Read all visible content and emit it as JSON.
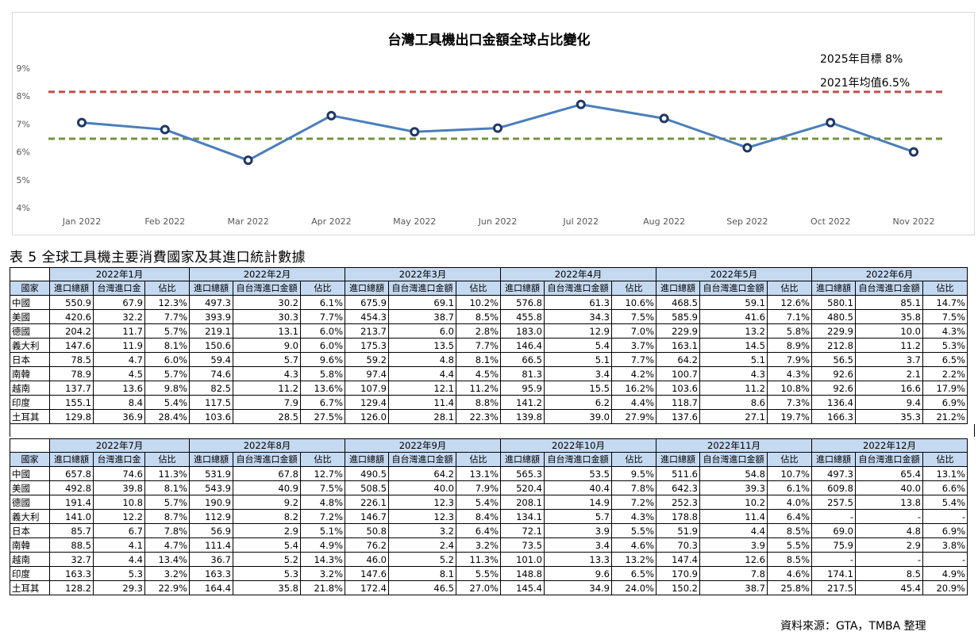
{
  "chart_data": {
    "type": "line",
    "title": "台灣工具機出口金額全球占比變化",
    "categories": [
      "Jan 2022",
      "Feb 2022",
      "Mar 2022",
      "Apr 2022",
      "May 2022",
      "Jun 2022",
      "Jul 2022",
      "Aug 2022",
      "Sep 2022",
      "Oct 2022",
      "Nov 2022"
    ],
    "series": [
      {
        "values": [
          7.05,
          6.8,
          5.7,
          7.3,
          6.72,
          6.85,
          7.7,
          7.2,
          6.15,
          7.05,
          6.0
        ],
        "color": "#4a7ebb"
      }
    ],
    "reference_lines": [
      {
        "label": "2025年目標 8%",
        "value": 8.15,
        "color": "#c0504d"
      },
      {
        "label": "2021年均值6.5%",
        "value": 6.47,
        "color": "#77933c"
      }
    ],
    "y_ticks": [
      "4%",
      "5%",
      "6%",
      "7%",
      "8%",
      "9%"
    ],
    "ylim": [
      4,
      9
    ],
    "grid": false
  },
  "table": {
    "caption": "表 5  全球工具機主要消費國家及其進口統計數據",
    "country_header": "國家",
    "sub_headers": [
      "進口總額",
      "台灣進口金",
      "佔比"
    ],
    "sub_headers_alt": [
      "進口總額",
      "自台灣進口金額",
      "佔比"
    ],
    "countries": [
      "中國",
      "美國",
      "德國",
      "義大利",
      "日本",
      "南韓",
      "越南",
      "印度",
      "土耳其"
    ],
    "top_months": [
      {
        "label": "2022年1月",
        "rows": [
          [
            "550.9",
            "67.9",
            "12.3%"
          ],
          [
            "420.6",
            "32.2",
            "7.7%"
          ],
          [
            "204.2",
            "11.7",
            "5.7%"
          ],
          [
            "147.6",
            "11.9",
            "8.1%"
          ],
          [
            "78.5",
            "4.7",
            "6.0%"
          ],
          [
            "78.9",
            "4.5",
            "5.7%"
          ],
          [
            "137.7",
            "13.6",
            "9.8%"
          ],
          [
            "155.1",
            "8.4",
            "5.4%"
          ],
          [
            "129.8",
            "36.9",
            "28.4%"
          ]
        ]
      },
      {
        "label": "2022年2月",
        "rows": [
          [
            "497.3",
            "30.2",
            "6.1%"
          ],
          [
            "393.9",
            "30.3",
            "7.7%"
          ],
          [
            "219.1",
            "13.1",
            "6.0%"
          ],
          [
            "150.6",
            "9.0",
            "6.0%"
          ],
          [
            "59.4",
            "5.7",
            "9.6%"
          ],
          [
            "74.6",
            "4.3",
            "5.8%"
          ],
          [
            "82.5",
            "11.2",
            "13.6%"
          ],
          [
            "117.5",
            "7.9",
            "6.7%"
          ],
          [
            "103.6",
            "28.5",
            "27.5%"
          ]
        ]
      },
      {
        "label": "2022年3月",
        "rows": [
          [
            "675.9",
            "69.1",
            "10.2%"
          ],
          [
            "454.3",
            "38.7",
            "8.5%"
          ],
          [
            "213.7",
            "6.0",
            "2.8%"
          ],
          [
            "175.3",
            "13.5",
            "7.7%"
          ],
          [
            "59.2",
            "4.8",
            "8.1%"
          ],
          [
            "97.4",
            "4.4",
            "4.5%"
          ],
          [
            "107.9",
            "12.1",
            "11.2%"
          ],
          [
            "129.4",
            "11.4",
            "8.8%"
          ],
          [
            "126.0",
            "28.1",
            "22.3%"
          ]
        ]
      },
      {
        "label": "2022年4月",
        "rows": [
          [
            "576.8",
            "61.3",
            "10.6%"
          ],
          [
            "455.8",
            "34.3",
            "7.5%"
          ],
          [
            "183.0",
            "12.9",
            "7.0%"
          ],
          [
            "146.4",
            "5.4",
            "3.7%"
          ],
          [
            "66.5",
            "5.1",
            "7.7%"
          ],
          [
            "81.3",
            "3.4",
            "4.2%"
          ],
          [
            "95.9",
            "15.5",
            "16.2%"
          ],
          [
            "141.2",
            "6.2",
            "4.4%"
          ],
          [
            "139.8",
            "39.0",
            "27.9%"
          ]
        ]
      },
      {
        "label": "2022年5月",
        "rows": [
          [
            "468.5",
            "59.1",
            "12.6%"
          ],
          [
            "585.9",
            "41.6",
            "7.1%"
          ],
          [
            "229.9",
            "13.2",
            "5.8%"
          ],
          [
            "163.1",
            "14.5",
            "8.9%"
          ],
          [
            "64.2",
            "5.1",
            "7.9%"
          ],
          [
            "100.7",
            "4.3",
            "4.3%"
          ],
          [
            "103.6",
            "11.2",
            "10.8%"
          ],
          [
            "118.7",
            "8.6",
            "7.3%"
          ],
          [
            "137.6",
            "27.1",
            "19.7%"
          ]
        ]
      },
      {
        "label": "2022年6月",
        "rows": [
          [
            "580.1",
            "85.1",
            "14.7%"
          ],
          [
            "480.5",
            "35.8",
            "7.5%"
          ],
          [
            "229.9",
            "10.0",
            "4.3%"
          ],
          [
            "212.8",
            "11.2",
            "5.3%"
          ],
          [
            "56.5",
            "3.7",
            "6.5%"
          ],
          [
            "92.6",
            "2.1",
            "2.2%"
          ],
          [
            "92.6",
            "16.6",
            "17.9%"
          ],
          [
            "136.4",
            "9.4",
            "6.9%"
          ],
          [
            "166.3",
            "35.3",
            "21.2%"
          ]
        ]
      }
    ],
    "bottom_months": [
      {
        "label": "2022年7月",
        "rows": [
          [
            "657.8",
            "74.6",
            "11.3%"
          ],
          [
            "492.8",
            "39.8",
            "8.1%"
          ],
          [
            "191.4",
            "10.8",
            "5.7%"
          ],
          [
            "141.0",
            "12.2",
            "8.7%"
          ],
          [
            "85.7",
            "6.7",
            "7.8%"
          ],
          [
            "88.5",
            "4.1",
            "4.7%"
          ],
          [
            "32.7",
            "4.4",
            "13.4%"
          ],
          [
            "163.3",
            "5.3",
            "3.2%"
          ],
          [
            "128.2",
            "29.3",
            "22.9%"
          ]
        ]
      },
      {
        "label": "2022年8月",
        "rows": [
          [
            "531.9",
            "67.8",
            "12.7%"
          ],
          [
            "543.9",
            "40.9",
            "7.5%"
          ],
          [
            "190.9",
            "9.2",
            "4.8%"
          ],
          [
            "112.9",
            "8.2",
            "7.2%"
          ],
          [
            "56.9",
            "2.9",
            "5.1%"
          ],
          [
            "111.4",
            "5.4",
            "4.9%"
          ],
          [
            "36.7",
            "5.2",
            "14.3%"
          ],
          [
            "163.3",
            "5.3",
            "3.2%"
          ],
          [
            "164.4",
            "35.8",
            "21.8%"
          ]
        ]
      },
      {
        "label": "2022年9月",
        "rows": [
          [
            "490.5",
            "64.2",
            "13.1%"
          ],
          [
            "508.5",
            "40.0",
            "7.9%"
          ],
          [
            "226.1",
            "12.3",
            "5.4%"
          ],
          [
            "146.7",
            "12.3",
            "8.4%"
          ],
          [
            "50.8",
            "3.2",
            "6.4%"
          ],
          [
            "76.2",
            "2.4",
            "3.2%"
          ],
          [
            "46.0",
            "5.2",
            "11.3%"
          ],
          [
            "147.6",
            "8.1",
            "5.5%"
          ],
          [
            "172.4",
            "46.5",
            "27.0%"
          ]
        ]
      },
      {
        "label": "2022年10月",
        "rows": [
          [
            "565.3",
            "53.5",
            "9.5%"
          ],
          [
            "520.4",
            "40.4",
            "7.8%"
          ],
          [
            "208.1",
            "14.9",
            "7.2%"
          ],
          [
            "134.1",
            "5.7",
            "4.3%"
          ],
          [
            "72.1",
            "3.9",
            "5.5%"
          ],
          [
            "73.5",
            "3.4",
            "4.6%"
          ],
          [
            "101.0",
            "13.3",
            "13.2%"
          ],
          [
            "148.8",
            "9.6",
            "6.5%"
          ],
          [
            "145.4",
            "34.9",
            "24.0%"
          ]
        ]
      },
      {
        "label": "2022年11月",
        "rows": [
          [
            "511.6",
            "54.8",
            "10.7%"
          ],
          [
            "642.3",
            "39.3",
            "6.1%"
          ],
          [
            "252.3",
            "10.2",
            "4.0%"
          ],
          [
            "178.8",
            "11.4",
            "6.4%"
          ],
          [
            "51.9",
            "4.4",
            "8.5%"
          ],
          [
            "70.3",
            "3.9",
            "5.5%"
          ],
          [
            "147.4",
            "12.6",
            "8.5%"
          ],
          [
            "170.9",
            "7.8",
            "4.6%"
          ],
          [
            "150.2",
            "38.7",
            "25.8%"
          ]
        ]
      },
      {
        "label": "2022年12月",
        "rows": [
          [
            "497.3",
            "65.4",
            "13.1%"
          ],
          [
            "609.8",
            "40.0",
            "6.6%"
          ],
          [
            "257.5",
            "13.8",
            "5.4%"
          ],
          [
            "-",
            "-",
            "-"
          ],
          [
            "69.0",
            "4.8",
            "6.9%"
          ],
          [
            "75.9",
            "2.9",
            "3.8%"
          ],
          [
            "-",
            "-",
            "-"
          ],
          [
            "174.1",
            "8.5",
            "4.9%"
          ],
          [
            "217.5",
            "45.4",
            "20.9%"
          ]
        ]
      }
    ]
  },
  "source_note": "資料來源：GTA，TMBA 整理"
}
